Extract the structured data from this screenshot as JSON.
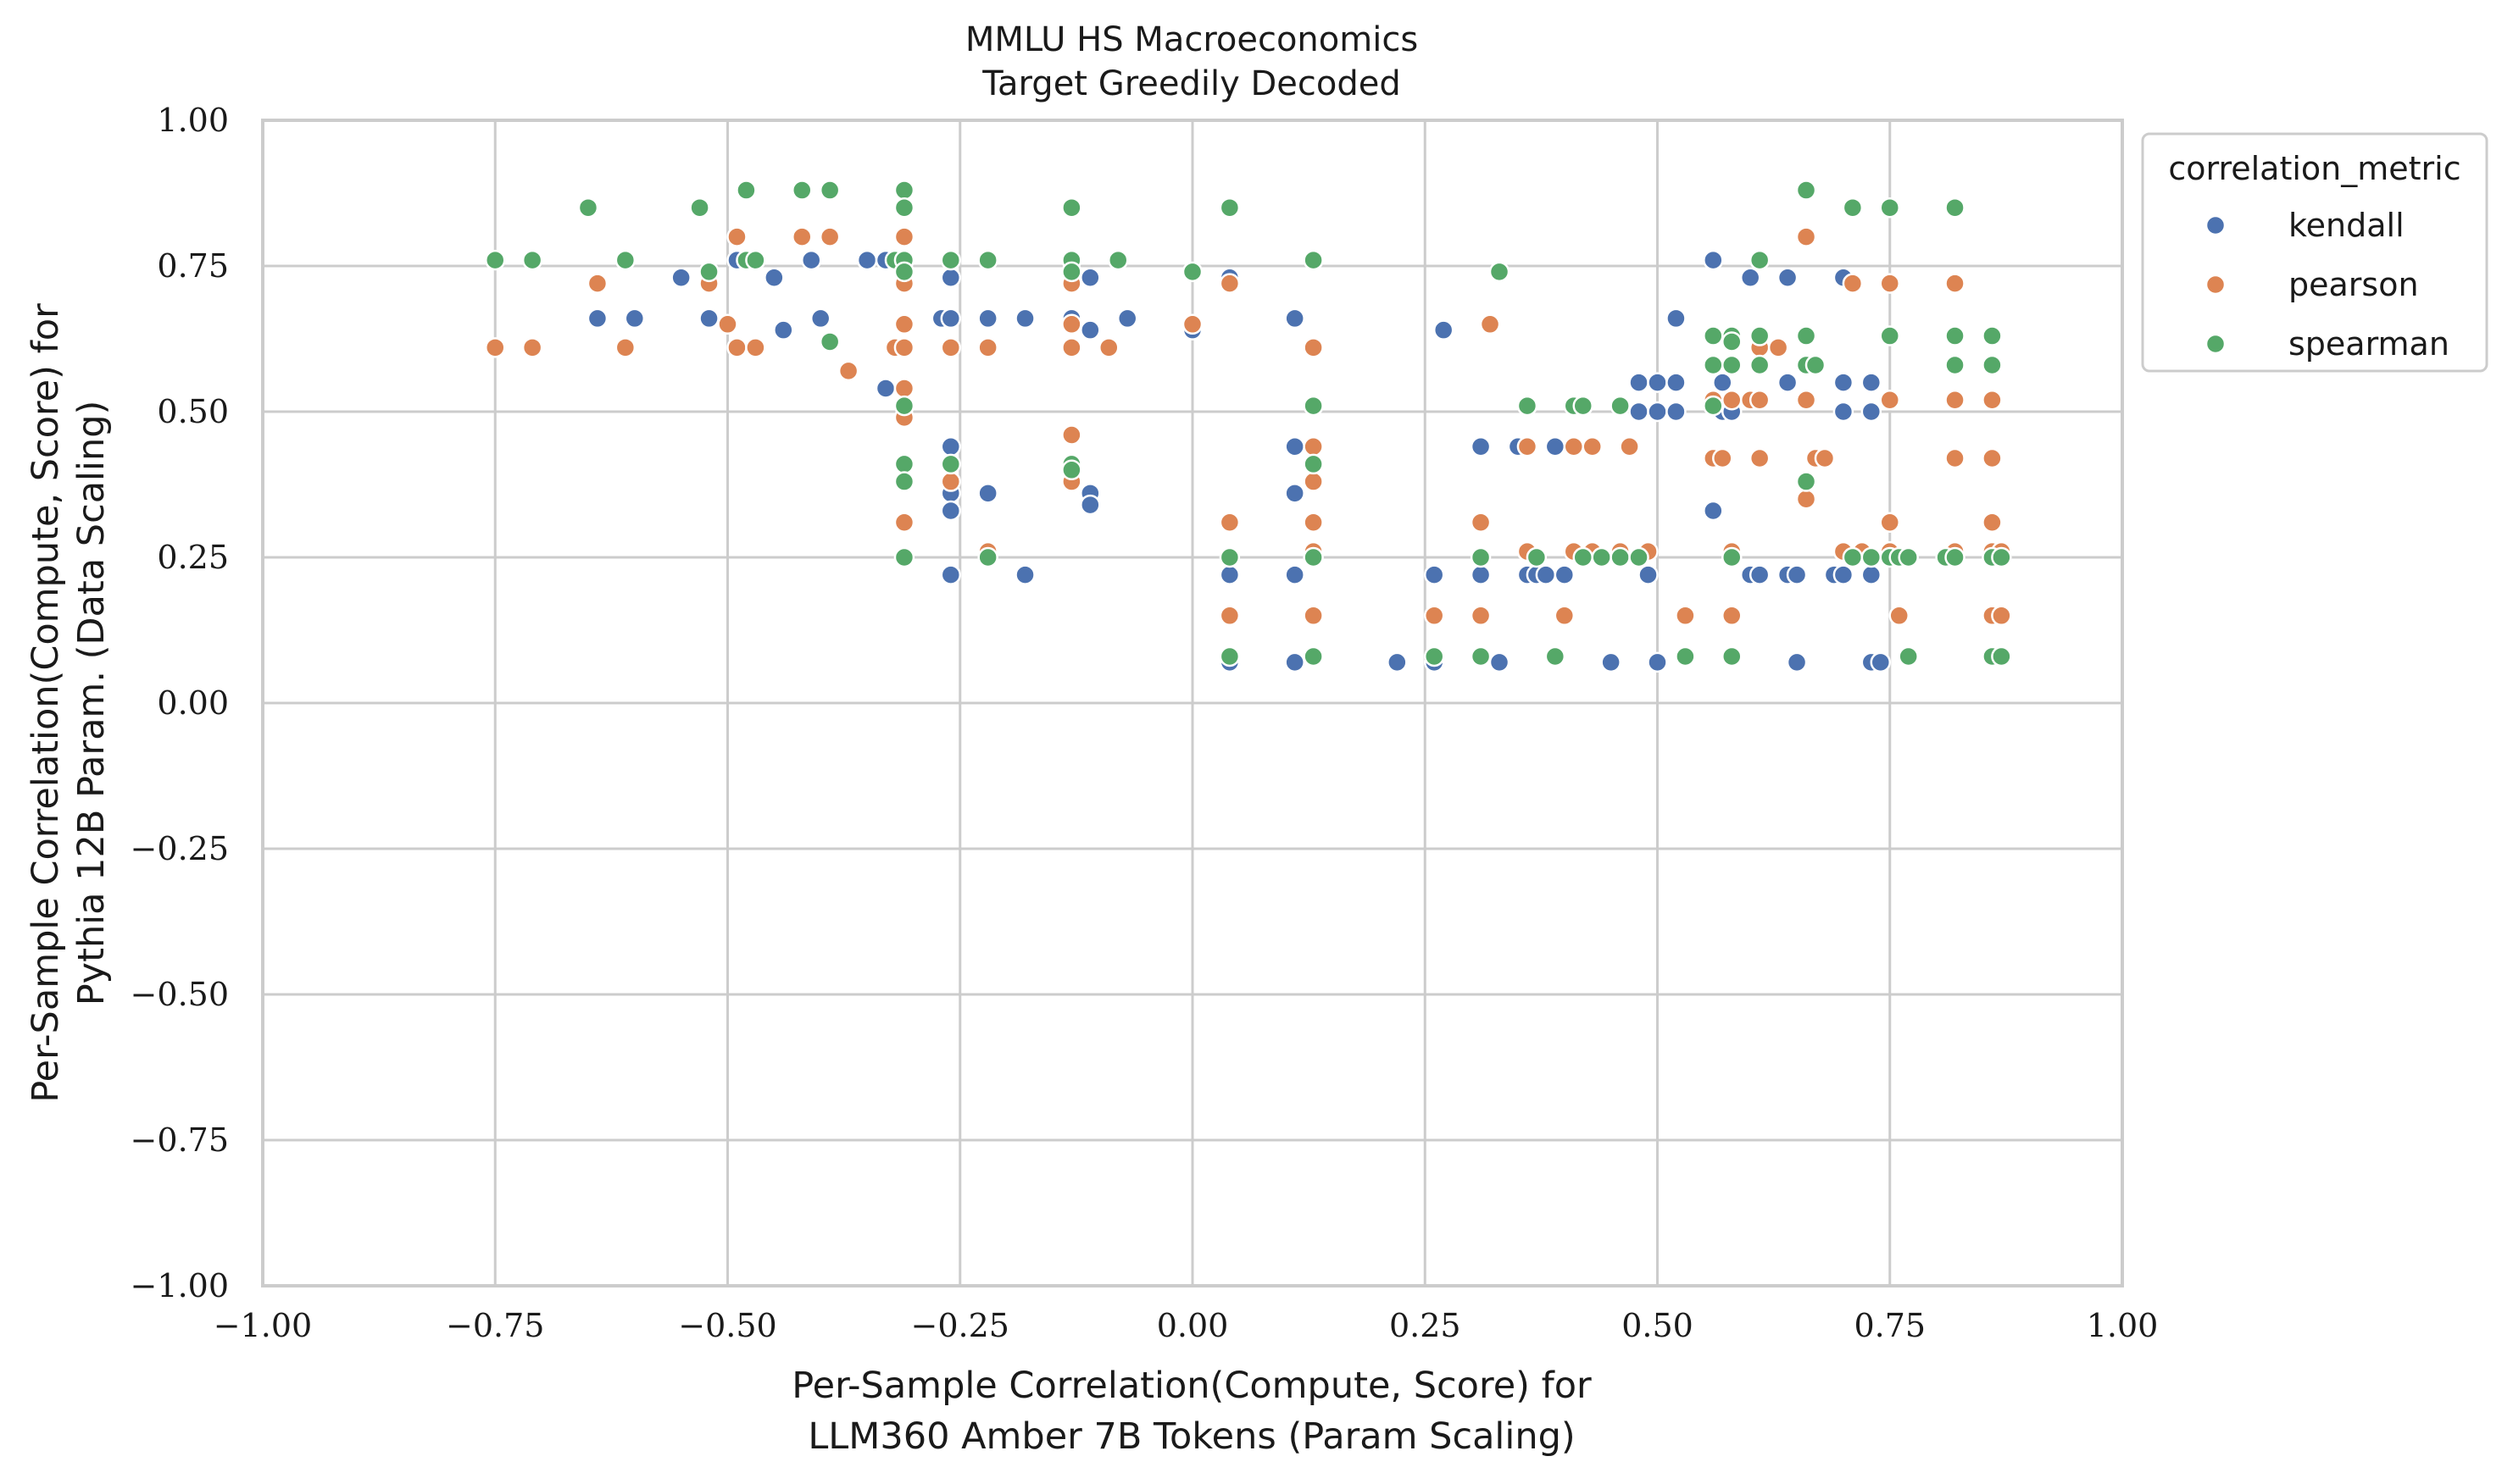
{
  "chart_data": {
    "type": "scatter",
    "title": "MMLU HS Macroeconomics",
    "subtitle": "Target Greedily Decoded",
    "xlabel": [
      "Per-Sample Correlation(Compute, Score) for",
      "LLM360 Amber 7B Tokens (Param Scaling)"
    ],
    "ylabel": [
      "Per-Sample Correlation(Compute, Score) for",
      "Pythia 12B Param. (Data Scaling)"
    ],
    "xlim": [
      -1.0,
      1.0
    ],
    "ylim": [
      -1.0,
      1.0
    ],
    "xticks": [
      -1.0,
      -0.75,
      -0.5,
      -0.25,
      0.0,
      0.25,
      0.5,
      0.75,
      1.0
    ],
    "yticks": [
      -1.0,
      -0.75,
      -0.5,
      -0.25,
      0.0,
      0.25,
      0.5,
      0.75,
      1.0
    ],
    "xtick_labels": [
      "−1.00",
      "−0.75",
      "−0.50",
      "−0.25",
      "0.00",
      "0.25",
      "0.50",
      "0.75",
      "1.00"
    ],
    "ytick_labels": [
      "−1.00",
      "−0.75",
      "−0.50",
      "−0.25",
      "0.00",
      "0.25",
      "0.50",
      "0.75",
      "1.00"
    ],
    "grid": true,
    "legend": {
      "title": "correlation_metric",
      "placement": "outside-top-right"
    },
    "series": [
      {
        "name": "kendall",
        "color": "#4c72b0",
        "points": [
          [
            -0.64,
            0.66
          ],
          [
            -0.6,
            0.66
          ],
          [
            -0.55,
            0.73
          ],
          [
            -0.52,
            0.66
          ],
          [
            -0.49,
            0.76
          ],
          [
            -0.45,
            0.73
          ],
          [
            -0.44,
            0.64
          ],
          [
            -0.41,
            0.76
          ],
          [
            -0.4,
            0.66
          ],
          [
            -0.35,
            0.76
          ],
          [
            -0.33,
            0.76
          ],
          [
            -0.33,
            0.54
          ],
          [
            -0.27,
            0.66
          ],
          [
            -0.26,
            0.73
          ],
          [
            -0.26,
            0.66
          ],
          [
            -0.26,
            0.44
          ],
          [
            -0.26,
            0.36
          ],
          [
            -0.26,
            0.33
          ],
          [
            -0.26,
            0.22
          ],
          [
            -0.22,
            0.66
          ],
          [
            -0.22,
            0.36
          ],
          [
            -0.18,
            0.66
          ],
          [
            -0.18,
            0.22
          ],
          [
            -0.13,
            0.66
          ],
          [
            -0.11,
            0.73
          ],
          [
            -0.11,
            0.64
          ],
          [
            -0.11,
            0.36
          ],
          [
            -0.11,
            0.34
          ],
          [
            -0.07,
            0.66
          ],
          [
            0.0,
            0.64
          ],
          [
            0.04,
            0.73
          ],
          [
            0.04,
            0.22
          ],
          [
            0.04,
            0.07
          ],
          [
            0.11,
            0.66
          ],
          [
            0.11,
            0.44
          ],
          [
            0.11,
            0.36
          ],
          [
            0.11,
            0.22
          ],
          [
            0.11,
            0.07
          ],
          [
            0.22,
            0.07
          ],
          [
            0.26,
            0.07
          ],
          [
            0.26,
            0.22
          ],
          [
            0.27,
            0.64
          ],
          [
            0.31,
            0.44
          ],
          [
            0.31,
            0.22
          ],
          [
            0.33,
            0.07
          ],
          [
            0.35,
            0.44
          ],
          [
            0.36,
            0.22
          ],
          [
            0.37,
            0.22
          ],
          [
            0.38,
            0.22
          ],
          [
            0.39,
            0.44
          ],
          [
            0.4,
            0.22
          ],
          [
            0.45,
            0.07
          ],
          [
            0.48,
            0.55
          ],
          [
            0.48,
            0.5
          ],
          [
            0.49,
            0.22
          ],
          [
            0.5,
            0.55
          ],
          [
            0.5,
            0.5
          ],
          [
            0.5,
            0.07
          ],
          [
            0.52,
            0.66
          ],
          [
            0.52,
            0.55
          ],
          [
            0.52,
            0.5
          ],
          [
            0.56,
            0.76
          ],
          [
            0.56,
            0.33
          ],
          [
            0.57,
            0.55
          ],
          [
            0.57,
            0.5
          ],
          [
            0.58,
            0.5
          ],
          [
            0.6,
            0.73
          ],
          [
            0.6,
            0.22
          ],
          [
            0.61,
            0.22
          ],
          [
            0.64,
            0.73
          ],
          [
            0.64,
            0.55
          ],
          [
            0.64,
            0.22
          ],
          [
            0.65,
            0.22
          ],
          [
            0.65,
            0.07
          ],
          [
            0.69,
            0.22
          ],
          [
            0.7,
            0.73
          ],
          [
            0.7,
            0.55
          ],
          [
            0.7,
            0.5
          ],
          [
            0.7,
            0.22
          ],
          [
            0.73,
            0.55
          ],
          [
            0.73,
            0.5
          ],
          [
            0.73,
            0.22
          ],
          [
            0.73,
            0.07
          ],
          [
            0.74,
            0.07
          ]
        ]
      },
      {
        "name": "pearson",
        "color": "#dd8452",
        "points": [
          [
            -0.75,
            0.61
          ],
          [
            -0.71,
            0.61
          ],
          [
            -0.64,
            0.72
          ],
          [
            -0.61,
            0.61
          ],
          [
            -0.52,
            0.72
          ],
          [
            -0.5,
            0.65
          ],
          [
            -0.49,
            0.8
          ],
          [
            -0.49,
            0.61
          ],
          [
            -0.47,
            0.61
          ],
          [
            -0.42,
            0.8
          ],
          [
            -0.39,
            0.8
          ],
          [
            -0.37,
            0.57
          ],
          [
            -0.32,
            0.61
          ],
          [
            -0.31,
            0.8
          ],
          [
            -0.31,
            0.72
          ],
          [
            -0.31,
            0.65
          ],
          [
            -0.31,
            0.61
          ],
          [
            -0.31,
            0.54
          ],
          [
            -0.31,
            0.49
          ],
          [
            -0.31,
            0.31
          ],
          [
            -0.26,
            0.61
          ],
          [
            -0.26,
            0.38
          ],
          [
            -0.22,
            0.61
          ],
          [
            -0.22,
            0.26
          ],
          [
            -0.13,
            0.72
          ],
          [
            -0.13,
            0.65
          ],
          [
            -0.13,
            0.61
          ],
          [
            -0.13,
            0.46
          ],
          [
            -0.13,
            0.38
          ],
          [
            -0.09,
            0.61
          ],
          [
            0.0,
            0.65
          ],
          [
            0.04,
            0.72
          ],
          [
            0.04,
            0.31
          ],
          [
            0.04,
            0.15
          ],
          [
            0.13,
            0.61
          ],
          [
            0.13,
            0.44
          ],
          [
            0.13,
            0.38
          ],
          [
            0.13,
            0.31
          ],
          [
            0.13,
            0.26
          ],
          [
            0.13,
            0.15
          ],
          [
            0.26,
            0.15
          ],
          [
            0.31,
            0.31
          ],
          [
            0.31,
            0.15
          ],
          [
            0.32,
            0.65
          ],
          [
            0.36,
            0.44
          ],
          [
            0.36,
            0.26
          ],
          [
            0.4,
            0.15
          ],
          [
            0.41,
            0.44
          ],
          [
            0.41,
            0.26
          ],
          [
            0.43,
            0.44
          ],
          [
            0.43,
            0.26
          ],
          [
            0.46,
            0.26
          ],
          [
            0.47,
            0.44
          ],
          [
            0.49,
            0.26
          ],
          [
            0.53,
            0.15
          ],
          [
            0.56,
            0.42
          ],
          [
            0.56,
            0.52
          ],
          [
            0.57,
            0.42
          ],
          [
            0.58,
            0.52
          ],
          [
            0.58,
            0.26
          ],
          [
            0.58,
            0.15
          ],
          [
            0.6,
            0.52
          ],
          [
            0.61,
            0.61
          ],
          [
            0.61,
            0.52
          ],
          [
            0.61,
            0.42
          ],
          [
            0.63,
            0.61
          ],
          [
            0.66,
            0.8
          ],
          [
            0.66,
            0.35
          ],
          [
            0.66,
            0.52
          ],
          [
            0.67,
            0.42
          ],
          [
            0.68,
            0.42
          ],
          [
            0.7,
            0.26
          ],
          [
            0.71,
            0.72
          ],
          [
            0.72,
            0.26
          ],
          [
            0.75,
            0.72
          ],
          [
            0.75,
            0.52
          ],
          [
            0.75,
            0.31
          ],
          [
            0.75,
            0.26
          ],
          [
            0.76,
            0.15
          ],
          [
            0.82,
            0.72
          ],
          [
            0.82,
            0.52
          ],
          [
            0.82,
            0.42
          ],
          [
            0.82,
            0.26
          ],
          [
            0.86,
            0.52
          ],
          [
            0.86,
            0.42
          ],
          [
            0.86,
            0.31
          ],
          [
            0.86,
            0.26
          ],
          [
            0.86,
            0.15
          ],
          [
            0.87,
            0.26
          ],
          [
            0.87,
            0.15
          ]
        ]
      },
      {
        "name": "spearman",
        "color": "#55a868",
        "points": [
          [
            -0.75,
            0.76
          ],
          [
            -0.71,
            0.76
          ],
          [
            -0.65,
            0.85
          ],
          [
            -0.61,
            0.76
          ],
          [
            -0.53,
            0.85
          ],
          [
            -0.52,
            0.74
          ],
          [
            -0.48,
            0.88
          ],
          [
            -0.48,
            0.76
          ],
          [
            -0.47,
            0.76
          ],
          [
            -0.42,
            0.88
          ],
          [
            -0.39,
            0.88
          ],
          [
            -0.39,
            0.62
          ],
          [
            -0.32,
            0.76
          ],
          [
            -0.31,
            0.88
          ],
          [
            -0.31,
            0.85
          ],
          [
            -0.31,
            0.76
          ],
          [
            -0.31,
            0.74
          ],
          [
            -0.31,
            0.51
          ],
          [
            -0.31,
            0.41
          ],
          [
            -0.31,
            0.38
          ],
          [
            -0.31,
            0.25
          ],
          [
            -0.26,
            0.76
          ],
          [
            -0.26,
            0.41
          ],
          [
            -0.22,
            0.76
          ],
          [
            -0.22,
            0.25
          ],
          [
            -0.13,
            0.85
          ],
          [
            -0.13,
            0.76
          ],
          [
            -0.13,
            0.74
          ],
          [
            -0.13,
            0.41
          ],
          [
            -0.13,
            0.4
          ],
          [
            -0.08,
            0.76
          ],
          [
            0.0,
            0.74
          ],
          [
            0.04,
            0.85
          ],
          [
            0.04,
            0.25
          ],
          [
            0.04,
            0.08
          ],
          [
            0.13,
            0.76
          ],
          [
            0.13,
            0.51
          ],
          [
            0.13,
            0.41
          ],
          [
            0.13,
            0.25
          ],
          [
            0.13,
            0.08
          ],
          [
            0.26,
            0.08
          ],
          [
            0.31,
            0.25
          ],
          [
            0.31,
            0.08
          ],
          [
            0.33,
            0.74
          ],
          [
            0.36,
            0.51
          ],
          [
            0.37,
            0.25
          ],
          [
            0.39,
            0.08
          ],
          [
            0.41,
            0.51
          ],
          [
            0.42,
            0.51
          ],
          [
            0.42,
            0.25
          ],
          [
            0.44,
            0.25
          ],
          [
            0.46,
            0.51
          ],
          [
            0.46,
            0.25
          ],
          [
            0.48,
            0.25
          ],
          [
            0.53,
            0.08
          ],
          [
            0.56,
            0.63
          ],
          [
            0.56,
            0.58
          ],
          [
            0.56,
            0.51
          ],
          [
            0.58,
            0.63
          ],
          [
            0.58,
            0.62
          ],
          [
            0.58,
            0.58
          ],
          [
            0.58,
            0.25
          ],
          [
            0.58,
            0.08
          ],
          [
            0.61,
            0.76
          ],
          [
            0.61,
            0.63
          ],
          [
            0.61,
            0.58
          ],
          [
            0.66,
            0.88
          ],
          [
            0.66,
            0.63
          ],
          [
            0.66,
            0.58
          ],
          [
            0.66,
            0.38
          ],
          [
            0.67,
            0.58
          ],
          [
            0.71,
            0.85
          ],
          [
            0.71,
            0.25
          ],
          [
            0.73,
            0.25
          ],
          [
            0.75,
            0.85
          ],
          [
            0.75,
            0.63
          ],
          [
            0.75,
            0.25
          ],
          [
            0.76,
            0.25
          ],
          [
            0.77,
            0.25
          ],
          [
            0.77,
            0.08
          ],
          [
            0.81,
            0.25
          ],
          [
            0.82,
            0.85
          ],
          [
            0.82,
            0.63
          ],
          [
            0.82,
            0.58
          ],
          [
            0.82,
            0.25
          ],
          [
            0.86,
            0.63
          ],
          [
            0.86,
            0.58
          ],
          [
            0.86,
            0.25
          ],
          [
            0.86,
            0.08
          ],
          [
            0.87,
            0.25
          ],
          [
            0.87,
            0.08
          ]
        ]
      }
    ]
  }
}
